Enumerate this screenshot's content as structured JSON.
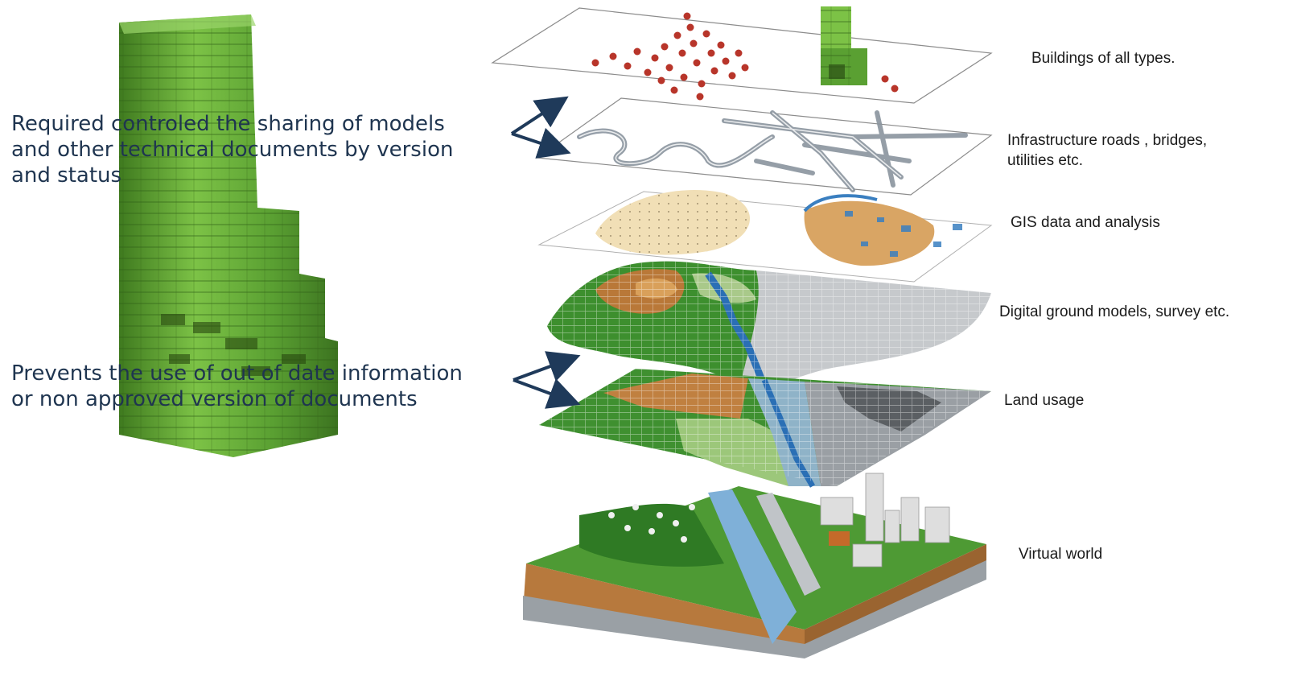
{
  "annotations": [
    "Required controled the sharing of models\nand other technical documents by version\nand status",
    "Prevents the use of out of date information\nor non approved version of documents"
  ],
  "layers": [
    {
      "label": "Buildings of all types."
    },
    {
      "label": "Infrastructure roads , bridges,\nutilities etc."
    },
    {
      "label": "GIS data and analysis"
    },
    {
      "label": "Digital ground models, survey etc."
    },
    {
      "label": "Land usage"
    },
    {
      "label": "Virtual world"
    }
  ],
  "colors": {
    "text": "#1f3550",
    "arrow": "#1f3a5a",
    "building_green": "#6fb43c",
    "building_green_dark": "#3f7a1f",
    "point_red": "#b8352a",
    "road_gray": "#9aa3ad",
    "terrain_green": "#3d8f2e",
    "terrain_brown": "#b97838",
    "water_blue": "#4b8fc9"
  },
  "icons": [
    "arrow-icon"
  ]
}
